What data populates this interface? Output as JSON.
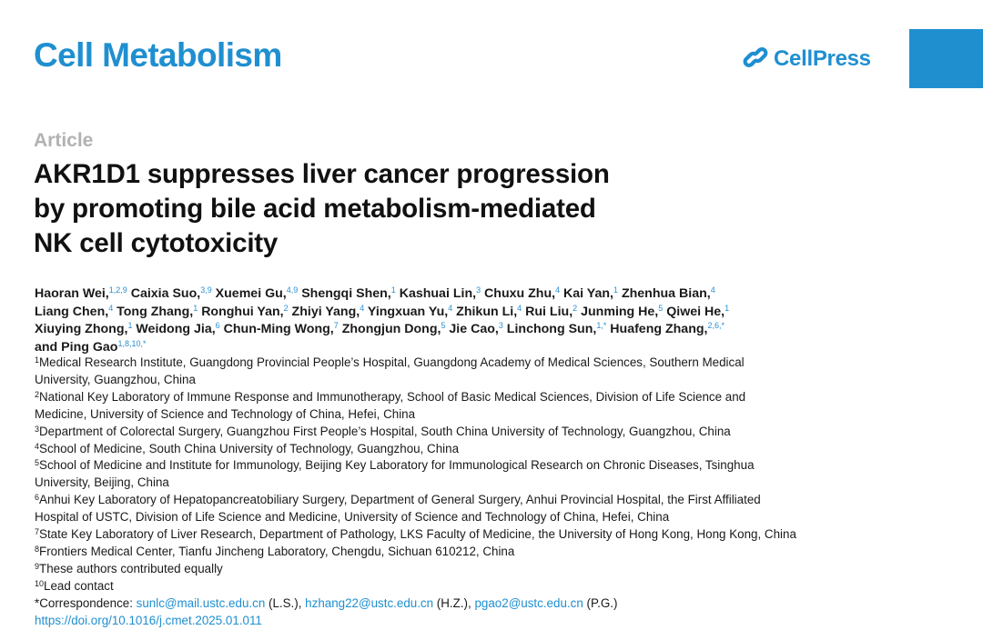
{
  "header": {
    "journal": "Cell Metabolism",
    "publisher": "CellPress"
  },
  "article": {
    "type": "Article",
    "title_lines": [
      "AKR1D1 suppresses liver cancer progression",
      "by promoting bile acid metabolism-mediated",
      "NK cell cytotoxicity"
    ]
  },
  "authors": {
    "lines": [
      [
        {
          "name": "Haoran Wei,",
          "sup": "1,2,9"
        },
        {
          "name": "Caixia Suo,",
          "sup": "3,9"
        },
        {
          "name": "Xuemei Gu,",
          "sup": "4,9"
        },
        {
          "name": "Shengqi Shen,",
          "sup": "1"
        },
        {
          "name": "Kashuai Lin,",
          "sup": "3"
        },
        {
          "name": "Chuxu Zhu,",
          "sup": "4"
        },
        {
          "name": "Kai Yan,",
          "sup": "1"
        },
        {
          "name": "Zhenhua Bian,",
          "sup": "4"
        }
      ],
      [
        {
          "name": "Liang Chen,",
          "sup": "4"
        },
        {
          "name": "Tong Zhang,",
          "sup": "1"
        },
        {
          "name": "Ronghui Yan,",
          "sup": "2"
        },
        {
          "name": "Zhiyi Yang,",
          "sup": "4"
        },
        {
          "name": "Yingxuan Yu,",
          "sup": "4"
        },
        {
          "name": "Zhikun Li,",
          "sup": "4"
        },
        {
          "name": "Rui Liu,",
          "sup": "2"
        },
        {
          "name": "Junming He,",
          "sup": "5"
        },
        {
          "name": "Qiwei He,",
          "sup": "1"
        }
      ],
      [
        {
          "name": "Xiuying Zhong,",
          "sup": "1"
        },
        {
          "name": "Weidong Jia,",
          "sup": "6"
        },
        {
          "name": "Chun-Ming Wong,",
          "sup": "7"
        },
        {
          "name": "Zhongjun Dong,",
          "sup": "5"
        },
        {
          "name": "Jie Cao,",
          "sup": "3"
        },
        {
          "name": "Linchong Sun,",
          "sup": "1,*"
        },
        {
          "name": "Huafeng Zhang,",
          "sup": "2,6,*"
        }
      ],
      [
        {
          "name": "and Ping Gao",
          "sup": "1,8,10,*"
        }
      ]
    ]
  },
  "affiliations": [
    {
      "num": "1",
      "lines": [
        "Medical Research Institute, Guangdong Provincial People’s Hospital, Guangdong Academy of Medical Sciences, Southern Medical",
        "University, Guangzhou, China"
      ]
    },
    {
      "num": "2",
      "lines": [
        "National Key Laboratory of Immune Response and Immunotherapy, School of Basic Medical Sciences, Division of Life Science and",
        "Medicine, University of Science and Technology of China, Hefei, China"
      ]
    },
    {
      "num": "3",
      "lines": [
        "Department of Colorectal Surgery, Guangzhou First People’s Hospital, South China University of Technology, Guangzhou, China"
      ]
    },
    {
      "num": "4",
      "lines": [
        "School of Medicine, South China University of Technology, Guangzhou, China"
      ]
    },
    {
      "num": "5",
      "lines": [
        "School of Medicine and Institute for Immunology, Beijing Key Laboratory for Immunological Research on Chronic Diseases, Tsinghua",
        "University, Beijing, China"
      ]
    },
    {
      "num": "6",
      "lines": [
        "Anhui Key Laboratory of Hepatopancreatobiliary Surgery, Department of General Surgery, Anhui Provincial Hospital, the First Affiliated",
        "Hospital of USTC, Division of Life Science and Medicine, University of Science and Technology of China, Hefei, China"
      ]
    },
    {
      "num": "7",
      "lines": [
        "State Key Laboratory of Liver Research, Department of Pathology, LKS Faculty of Medicine, the University of Hong Kong, Hong Kong, China"
      ]
    },
    {
      "num": "8",
      "lines": [
        "Frontiers Medical Center, Tianfu Jincheng Laboratory, Chengdu, Sichuan 610212, China"
      ]
    },
    {
      "num": "9",
      "lines": [
        "These authors contributed equally"
      ]
    },
    {
      "num": "10",
      "lines": [
        "Lead contact"
      ]
    }
  ],
  "correspondence": {
    "label": "*Correspondence: ",
    "entries": [
      {
        "email": "sunlc@mail.ustc.edu.cn",
        "initials": " (L.S.), "
      },
      {
        "email": "hzhang22@ustc.edu.cn",
        "initials": " (H.Z.), "
      },
      {
        "email": "pgao2@ustc.edu.cn",
        "initials": " (P.G.)"
      }
    ]
  },
  "doi": "https://doi.org/10.1016/j.cmet.2025.01.011",
  "colors": {
    "brand_blue": "#1f8fd0",
    "article_label_gray": "#b2b2b2",
    "text": "#1a1a1a"
  },
  "icons": {
    "publisher_logo": "cellpress-link-logo-icon"
  }
}
